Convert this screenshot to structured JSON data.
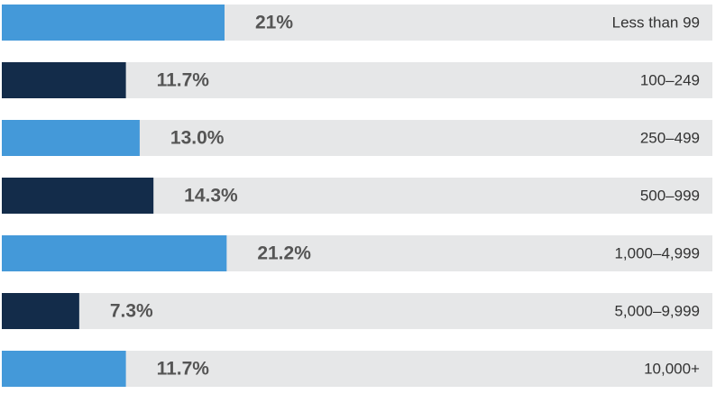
{
  "chart_data": {
    "type": "bar",
    "categories": [
      "Less than 99",
      "100–249",
      "250–499",
      "500–999",
      "1,000–4,999",
      "5,000–9,999",
      "10,000+"
    ],
    "values": [
      21,
      11.7,
      13.0,
      14.3,
      21.2,
      7.3,
      11.7
    ],
    "value_labels": [
      "21%",
      "11.7%",
      "13.0%",
      "14.3%",
      "21.2%",
      "7.3%",
      "11.7%"
    ],
    "colors": [
      "#4499d9",
      "#132c4a",
      "#4499d9",
      "#132c4a",
      "#4499d9",
      "#132c4a",
      "#4499d9"
    ],
    "xlim": [
      0,
      67
    ]
  }
}
